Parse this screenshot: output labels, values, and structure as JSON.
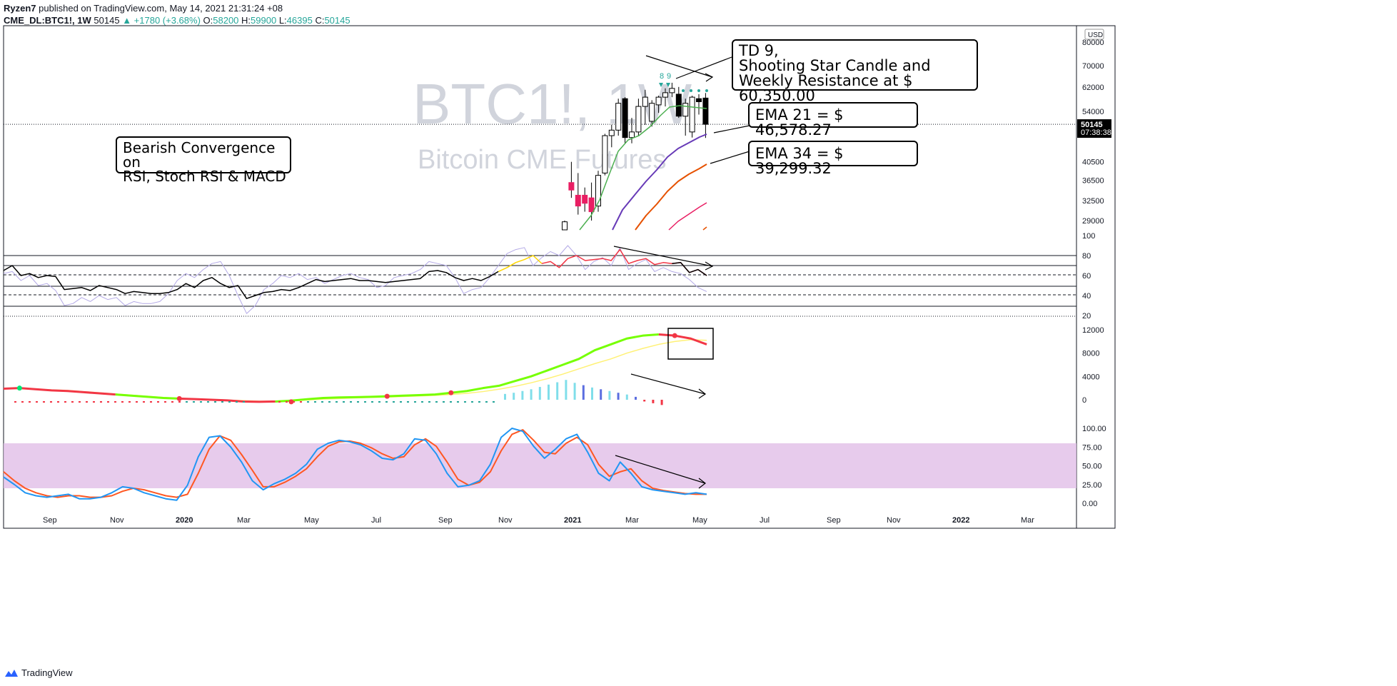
{
  "header": {
    "publisher": "Ryzen7",
    "published_line": " published on TradingView.com, May 14, 2021 21:31:24 +08",
    "symbol": "CME_DL:BTC1!, 1W",
    "last": "50145",
    "change": "▲ +1780 (+3.68%)",
    "o_label": "O:",
    "o": "58200",
    "h_label": "H:",
    "h": "59900",
    "l_label": "L:",
    "l": "46395",
    "c_label": "C:",
    "c": "50145"
  },
  "watermark": {
    "symbol": "BTC1!, 1W",
    "name": "Bitcoin CME Futures"
  },
  "annotations": {
    "bearish": [
      "Bearish Convergence on",
      "RSI, Stoch RSI & MACD"
    ],
    "td9": [
      "TD 9,",
      "Shooting Star Candle and",
      "Weekly Resistance at $ 60,350.00"
    ],
    "ema21": "EMA 21 = $ 46,578.27",
    "ema34": "EMA 34 = $ 39,299.32"
  },
  "price_axis": {
    "currency": "USD",
    "last_price": "50145",
    "countdown": "07:38:38"
  },
  "footer": {
    "brand": "TradingView"
  },
  "colors": {
    "accent_green": "#26a69a",
    "bearish_candle": "#e91e63",
    "ema_green": "#4caf50",
    "ema_purple": "#673ab7",
    "ema_orange": "#e65100",
    "macd_green": "#76ff03",
    "stoch_blue": "#2196f3",
    "stoch_orange": "#ff5722",
    "stoch_band": "#e1bee7"
  },
  "chart_data": [
    {
      "type": "candlestick",
      "title": "BTC1!, 1W",
      "subtitle": "Bitcoin CME Futures",
      "price_ticks": [
        80000,
        70000,
        62000,
        54000,
        40500,
        36500,
        32500,
        29000
      ],
      "time_ticks": [
        "Sep",
        "Nov",
        "2020",
        "Mar",
        "May",
        "Jul",
        "Sep",
        "Nov",
        "2021",
        "Mar",
        "May",
        "Jul",
        "Sep",
        "Nov",
        "2022",
        "Mar"
      ],
      "candles": [
        {
          "o": 18500,
          "h": 29000,
          "l": 18000,
          "c": 28800
        },
        {
          "o": 36000,
          "h": 40500,
          "l": 33000,
          "c": 34500
        },
        {
          "o": 33500,
          "h": 38000,
          "l": 30000,
          "c": 31500
        },
        {
          "o": 33500,
          "h": 35000,
          "l": 30500,
          "c": 32000
        },
        {
          "o": 33000,
          "h": 36000,
          "l": 29000,
          "c": 30500
        },
        {
          "o": 31500,
          "h": 38500,
          "l": 30500,
          "c": 37500
        },
        {
          "o": 38000,
          "h": 47500,
          "l": 37500,
          "c": 47000
        },
        {
          "o": 47000,
          "h": 50000,
          "l": 44000,
          "c": 48500
        },
        {
          "o": 48500,
          "h": 58000,
          "l": 47000,
          "c": 56500
        },
        {
          "o": 58000,
          "h": 58500,
          "l": 45000,
          "c": 46500
        },
        {
          "o": 46500,
          "h": 52000,
          "l": 45000,
          "c": 48000
        },
        {
          "o": 48000,
          "h": 58000,
          "l": 47000,
          "c": 55500
        },
        {
          "o": 55500,
          "h": 61000,
          "l": 50000,
          "c": 58500
        },
        {
          "o": 51000,
          "h": 57500,
          "l": 49500,
          "c": 56500
        },
        {
          "o": 56000,
          "h": 59000,
          "l": 53500,
          "c": 58500
        },
        {
          "o": 58500,
          "h": 61500,
          "l": 55500,
          "c": 60000
        },
        {
          "o": 60000,
          "h": 63500,
          "l": 58500,
          "c": 61500
        },
        {
          "o": 59500,
          "h": 62000,
          "l": 52000,
          "c": 52500
        },
        {
          "o": 52500,
          "h": 58000,
          "l": 47000,
          "c": 56500
        },
        {
          "o": 48000,
          "h": 59000,
          "l": 46500,
          "c": 58500
        },
        {
          "o": 58000,
          "h": 59500,
          "l": 53000,
          "c": 57000
        },
        {
          "o": 58200,
          "h": 59900,
          "l": 46395,
          "c": 50145
        }
      ],
      "ema_labels": {
        "ema21": 46578.27,
        "ema34": 39299.32
      },
      "td_labels": [
        "8",
        "9"
      ]
    },
    {
      "type": "line",
      "title": "RSI",
      "ticks": [
        100,
        80,
        60,
        40,
        20
      ],
      "rsi": [
        65,
        70,
        60,
        62,
        58,
        60,
        59,
        46,
        47,
        48,
        45,
        50,
        48,
        46,
        42,
        44,
        43,
        42,
        42,
        43,
        46,
        52,
        48,
        55,
        58,
        52,
        48,
        50,
        37,
        40,
        43,
        44,
        46,
        45,
        48,
        52,
        56,
        54,
        55,
        56,
        57,
        55,
        55,
        54,
        53,
        54,
        55,
        56,
        57,
        64,
        65,
        63,
        58,
        55,
        57,
        55,
        59,
        64,
        68,
        73,
        76,
        80,
        72,
        74,
        68,
        77,
        80,
        75,
        76,
        77,
        75,
        86,
        72,
        75,
        77,
        71,
        73,
        72,
        73,
        63,
        66,
        60
      ],
      "stoch_rsi_faint": [
        62,
        64,
        55,
        60,
        50,
        52,
        45,
        30,
        32,
        38,
        34,
        40,
        36,
        38,
        30,
        34,
        32,
        32,
        34,
        42,
        55,
        62,
        58,
        66,
        72,
        74,
        60,
        40,
        22,
        30,
        46,
        52,
        60,
        58,
        62,
        56,
        58,
        52,
        56,
        60,
        62,
        58,
        56,
        48,
        50,
        58,
        60,
        62,
        66,
        74,
        72,
        70,
        58,
        42,
        46,
        48,
        58,
        70,
        82,
        86,
        88,
        70,
        78,
        84,
        80,
        90,
        80,
        66,
        74,
        78,
        70,
        88,
        66,
        72,
        76,
        64,
        68,
        64,
        62,
        56,
        48,
        44
      ],
      "divergence_line": [
        [
          860,
          345
        ],
        [
          998,
          373
        ]
      ]
    },
    {
      "type": "line",
      "title": "MACD",
      "ticks": [
        12000,
        8000,
        4000,
        0
      ],
      "macd": [
        1900,
        2000,
        1800,
        1600,
        1500,
        1300,
        1100,
        900,
        700,
        500,
        300,
        200,
        100,
        0,
        -100,
        -300,
        -350,
        -300,
        -150,
        100,
        300,
        400,
        450,
        500,
        600,
        700,
        800,
        900,
        1200,
        1500,
        2000,
        2400,
        3200,
        4000,
        5000,
        6000,
        7000,
        8500,
        9500,
        10500,
        11000,
        11200,
        11000,
        10500,
        9500
      ],
      "signal": [
        1900,
        1900,
        1800,
        1700,
        1600,
        1400,
        1200,
        1000,
        800,
        600,
        400,
        250,
        150,
        50,
        -50,
        -150,
        -250,
        -250,
        -200,
        -50,
        100,
        200,
        300,
        400,
        450,
        550,
        650,
        750,
        900,
        1100,
        1400,
        1800,
        2300,
        2900,
        3600,
        4400,
        5300,
        6200,
        7000,
        8000,
        8800,
        9500,
        10000,
        10300,
        10200
      ],
      "histogram": [
        1000,
        1200,
        1500,
        1800,
        2200,
        2600,
        3000,
        3400,
        2900,
        2500,
        2100,
        1800,
        1500,
        1200,
        900,
        500,
        -300,
        -600,
        -900
      ]
    },
    {
      "type": "line",
      "title": "Stoch RSI",
      "ticks": [
        100.0,
        75.0,
        50.0,
        25.0,
        0.0
      ],
      "band": [
        20,
        80
      ],
      "k": [
        35,
        25,
        14,
        10,
        8,
        10,
        12,
        6,
        6,
        8,
        14,
        22,
        20,
        14,
        10,
        6,
        4,
        24,
        62,
        88,
        90,
        75,
        55,
        30,
        18,
        26,
        32,
        40,
        52,
        72,
        80,
        84,
        82,
        78,
        70,
        60,
        58,
        66,
        86,
        84,
        66,
        40,
        22,
        24,
        30,
        52,
        88,
        100,
        96,
        76,
        60,
        72,
        86,
        92,
        68,
        40,
        30,
        55,
        40,
        22,
        18,
        16,
        14,
        12,
        14,
        12
      ],
      "d": [
        42,
        30,
        20,
        14,
        10,
        8,
        10,
        10,
        8,
        8,
        10,
        16,
        20,
        18,
        14,
        10,
        8,
        12,
        40,
        72,
        90,
        84,
        65,
        44,
        22,
        22,
        28,
        36,
        46,
        62,
        76,
        82,
        83,
        80,
        74,
        66,
        60,
        62,
        78,
        86,
        76,
        55,
        32,
        24,
        28,
        42,
        70,
        92,
        98,
        84,
        68,
        66,
        80,
        88,
        78,
        52,
        36,
        42,
        46,
        30,
        20,
        17,
        15,
        13,
        12,
        12
      ],
      "divergence_line": [
        [
          862,
          638
        ],
        [
          988,
          677
        ]
      ]
    }
  ]
}
